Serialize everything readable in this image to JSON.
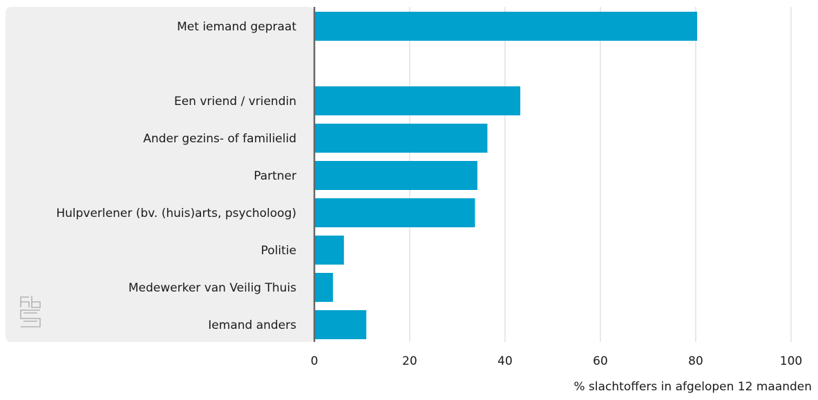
{
  "chart_data": {
    "type": "bar",
    "orientation": "horizontal",
    "categories": [
      "Met iemand gepraat",
      "",
      "Een vriend / vriendin",
      "Ander gezins- of familielid",
      "Partner",
      "Hulpverlener (bv. (huis)arts, psycholoog)",
      "Politie",
      "Medewerker van Veilig Thuis",
      "Iemand anders"
    ],
    "values": [
      80.3,
      null,
      43.2,
      36.3,
      34.2,
      33.7,
      6.2,
      3.9,
      10.9
    ],
    "xlim": [
      0,
      100
    ],
    "xticks": [
      "0",
      "20",
      "40",
      "60",
      "80",
      "100"
    ],
    "xlabel": "% slachtoffers in afgelopen 12 maanden",
    "grid": "vertical",
    "colors": {
      "bar": "#00a1cd",
      "label_panel": "#efefef",
      "grid": "#d9d9d9",
      "axis": "#666666",
      "text": "#1a1a1a",
      "logo": "#b3b3b3"
    }
  },
  "logo": {
    "icon": "cbs-logo-icon"
  }
}
